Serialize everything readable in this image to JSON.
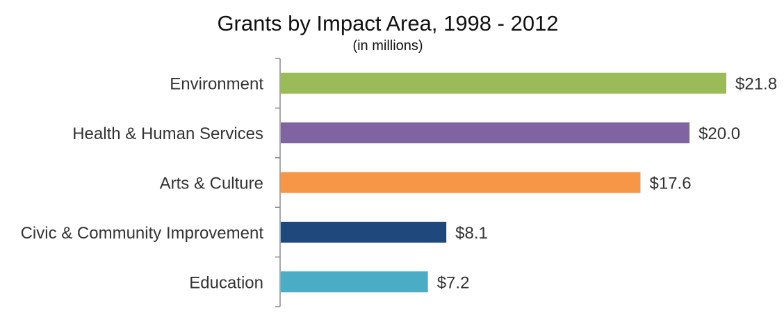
{
  "chart_data": {
    "type": "bar",
    "orientation": "horizontal",
    "title": "Grants by Impact Area, 1998 - 2012",
    "subtitle": "(in millions)",
    "categories": [
      "Environment",
      "Health & Human Services",
      "Arts & Culture",
      "Civic & Community Improvement",
      "Education"
    ],
    "values": [
      21.8,
      20.0,
      17.6,
      8.1,
      7.2
    ],
    "data_labels": [
      "$21.8",
      "$20.0",
      "$17.6",
      "$8.1",
      "$7.2"
    ],
    "colors": [
      "#9bbb59",
      "#8064a2",
      "#f79646",
      "#1f497d",
      "#4bacc6"
    ],
    "xlim": [
      0,
      22
    ],
    "grid": false,
    "legend": "none"
  }
}
